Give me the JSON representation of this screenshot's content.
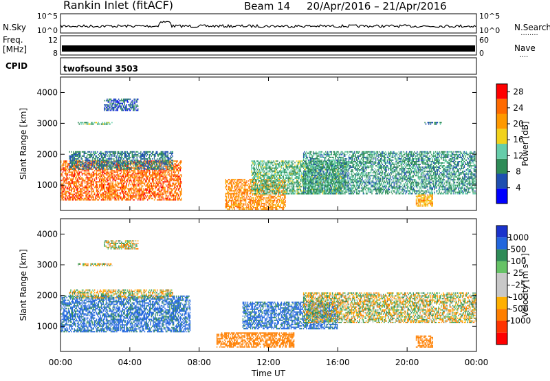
{
  "header": {
    "station": "Rankin Inlet (fitACF)",
    "beam": "Beam 14",
    "dates": "20/Apr/2016 – 21/Apr/2016"
  },
  "aux": {
    "nsky_label": "N.Sky",
    "nsearch_label": "N.Search",
    "freq_label": "Freq.",
    "freq_unit": "[MHz]",
    "nave_label": "Nave",
    "cpid_label": "CPID",
    "cpid_value": "twofsound 3503",
    "noise_left_ticks": [
      "10^5",
      "10^0"
    ],
    "noise_right_ticks": [
      "10^5",
      "10^0"
    ],
    "freq_left_ticks": [
      "12",
      "8"
    ],
    "freq_right_ticks": [
      "60",
      "0"
    ]
  },
  "colors": {
    "power_scale": [
      "#0000ff",
      "#1e4fb0",
      "#2e8b57",
      "#66cdaa",
      "#f2d21b",
      "#ff9900",
      "#ff6a00",
      "#ff0000"
    ],
    "velocity_scale": [
      "#1a33cc",
      "#2266dd",
      "#2e8b57",
      "#66c266",
      "#c8c8c8",
      "#c8c8c8",
      "#ffb000",
      "#ff7f00",
      "#ff3300",
      "#ff0000"
    ],
    "axis": "#000000"
  },
  "chart_data": [
    {
      "type": "heatmap",
      "title": "",
      "parameter": "Power",
      "xlabel": "",
      "ylabel": "Slant Range [km]",
      "x_ticks": [
        "00:00",
        "04:00",
        "08:00",
        "12:00",
        "16:00",
        "20:00",
        "00:00"
      ],
      "y_ticks": [
        1000,
        2000,
        3000,
        4000
      ],
      "xlim_hours_ut": [
        0,
        24
      ],
      "ylim_km": [
        180,
        4500
      ],
      "colorbar": {
        "label": "Power [dB]",
        "ticks": [
          4,
          8,
          12,
          16,
          20,
          24,
          28
        ],
        "range": [
          0,
          30
        ]
      },
      "regions": [
        {
          "t": [
            0.0,
            7.0
          ],
          "r": [
            500,
            1800
          ],
          "value": 24
        },
        {
          "t": [
            0.5,
            6.5
          ],
          "r": [
            1500,
            2100
          ],
          "value": 8
        },
        {
          "t": [
            1.0,
            3.0
          ],
          "r": [
            2950,
            3050
          ],
          "value": 12
        },
        {
          "t": [
            2.5,
            4.5
          ],
          "r": [
            3400,
            3800
          ],
          "value": 6
        },
        {
          "t": [
            9.5,
            13.0
          ],
          "r": [
            200,
            1200
          ],
          "value": 22
        },
        {
          "t": [
            11.0,
            16.5
          ],
          "r": [
            700,
            1800
          ],
          "value": 12
        },
        {
          "t": [
            14.0,
            24.0
          ],
          "r": [
            700,
            2100
          ],
          "value": 10
        },
        {
          "t": [
            20.5,
            21.5
          ],
          "r": [
            300,
            700
          ],
          "value": 20
        },
        {
          "t": [
            21.0,
            22.0
          ],
          "r": [
            2950,
            3050
          ],
          "value": 8
        }
      ]
    },
    {
      "type": "heatmap",
      "title": "",
      "parameter": "Velocity",
      "xlabel": "Time UT",
      "ylabel": "Slant Range [km]",
      "x_ticks": [
        "00:00",
        "04:00",
        "08:00",
        "12:00",
        "16:00",
        "20:00",
        "00:00"
      ],
      "y_ticks": [
        1000,
        2000,
        3000,
        4000
      ],
      "xlim_hours_ut": [
        0,
        24
      ],
      "ylim_km": [
        180,
        4500
      ],
      "colorbar": {
        "label": "Velocity [m s⁻¹]",
        "ticks": [
          "1000",
          "500",
          "100",
          "25",
          "–25",
          "–100",
          "–500",
          "–1000"
        ]
      },
      "regions": [
        {
          "t": [
            0.0,
            7.5
          ],
          "r": [
            800,
            2000
          ],
          "value": 600
        },
        {
          "t": [
            0.5,
            6.5
          ],
          "r": [
            1900,
            2200
          ],
          "value": 0
        },
        {
          "t": [
            1.0,
            3.0
          ],
          "r": [
            2950,
            3050
          ],
          "value": 0
        },
        {
          "t": [
            2.5,
            4.5
          ],
          "r": [
            3500,
            3800
          ],
          "value": 0
        },
        {
          "t": [
            9.0,
            13.5
          ],
          "r": [
            300,
            800
          ],
          "value": -300
        },
        {
          "t": [
            10.5,
            16.0
          ],
          "r": [
            900,
            1800
          ],
          "value": 600
        },
        {
          "t": [
            14.0,
            24.0
          ],
          "r": [
            1100,
            2100
          ],
          "value": 0
        },
        {
          "t": [
            20.5,
            21.5
          ],
          "r": [
            300,
            700
          ],
          "value": -300
        }
      ]
    }
  ]
}
